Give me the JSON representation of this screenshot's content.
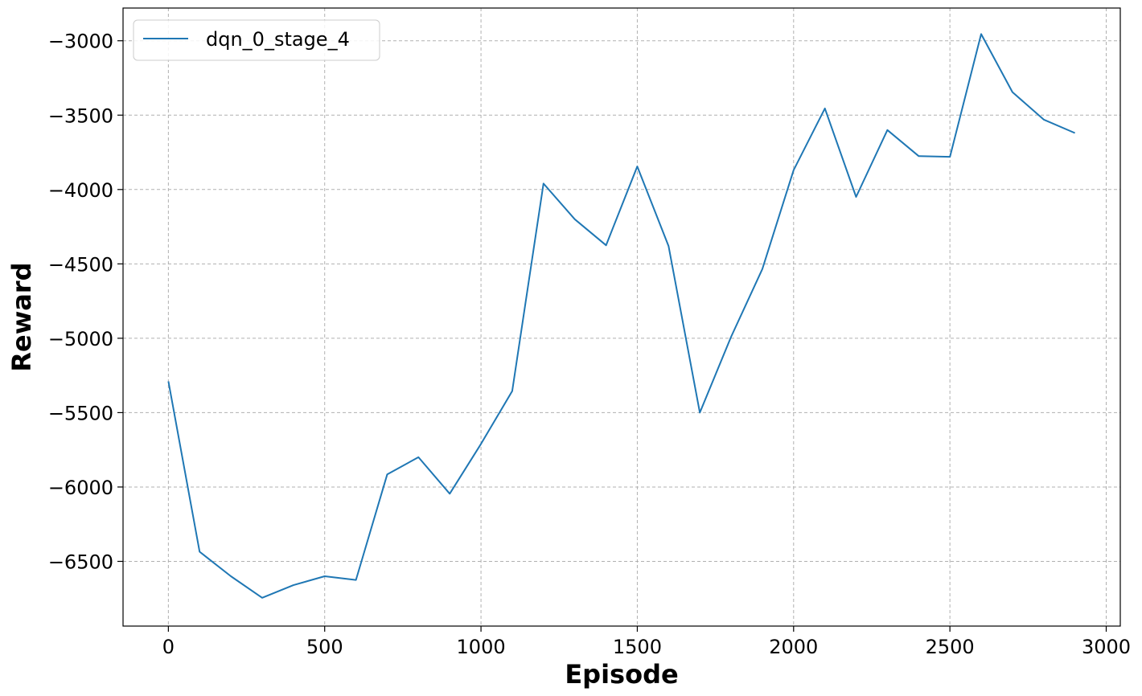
{
  "chart_data": {
    "type": "line",
    "title": "",
    "xlabel": "Episode",
    "ylabel": "Reward",
    "xlim": [
      -145,
      3045
    ],
    "ylim": [
      -6935,
      -2780
    ],
    "xticks": [
      0,
      500,
      1000,
      1500,
      2000,
      2500,
      3000
    ],
    "yticks": [
      -3000,
      -3500,
      -4000,
      -4500,
      -5000,
      -5500,
      -6000,
      -6500
    ],
    "xtick_labels": [
      "0",
      "500",
      "1000",
      "1500",
      "2000",
      "2500",
      "3000"
    ],
    "ytick_labels": [
      "−3000",
      "−3500",
      "−4000",
      "−4500",
      "−5000",
      "−5500",
      "−6000",
      "−6500"
    ],
    "grid": true,
    "legend_position": "upper left",
    "series": [
      {
        "name": "dqn_0_stage_4",
        "color": "#1f77b4",
        "x": [
          0,
          100,
          200,
          300,
          400,
          500,
          600,
          700,
          800,
          900,
          1000,
          1100,
          1200,
          1300,
          1400,
          1500,
          1600,
          1700,
          1800,
          1900,
          2000,
          2100,
          2200,
          2300,
          2400,
          2500,
          2600,
          2700,
          2800,
          2900
        ],
        "y": [
          -5290,
          -6435,
          -6600,
          -6745,
          -6660,
          -6600,
          -6625,
          -5915,
          -5800,
          -6045,
          -5710,
          -5355,
          -3960,
          -4200,
          -4375,
          -3845,
          -4380,
          -5500,
          -4990,
          -4535,
          -3870,
          -3455,
          -4050,
          -3600,
          -3775,
          -3780,
          -2955,
          -3345,
          -3530,
          -3620
        ]
      }
    ]
  }
}
